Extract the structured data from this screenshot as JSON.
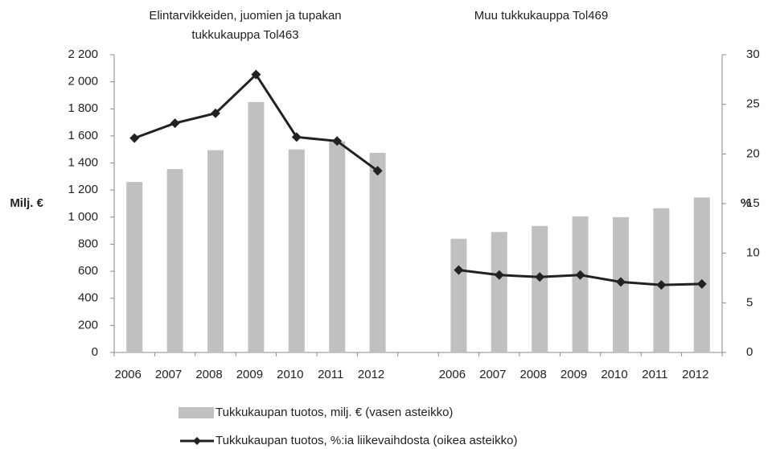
{
  "chart_data": {
    "type": "bar_line",
    "annotations": [
      {
        "lines": [
          "Elintarvikkeiden, juomien ja tupakan",
          "tukkukauppa Tol463"
        ]
      },
      {
        "lines": [
          "Muu tukkukauppa Tol469"
        ]
      }
    ],
    "ylabel": "Milj. €",
    "y2label": "%",
    "categories": [
      "2006",
      "2007",
      "2008",
      "2009",
      "2010",
      "2011",
      "2012",
      null,
      "2006",
      "2007",
      "2008",
      "2009",
      "2010",
      "2011",
      "2012"
    ],
    "series": [
      {
        "name": "Tukkukaupan tuotos, milj. € (vasen asteikko)",
        "color": "#c0c0c0",
        "kind": "bar",
        "values": [
          1260,
          1355,
          1495,
          1850,
          1500,
          1560,
          1475,
          null,
          840,
          890,
          935,
          1005,
          1000,
          1065,
          1145
        ]
      },
      {
        "name": "Tukkukaupan tuotos, %:ia liikevaihdosta (oikea asteikko)",
        "color": "#222222",
        "kind": "line",
        "axis": "y2",
        "values": [
          21.6,
          23.1,
          24.1,
          28,
          21.7,
          21.3,
          18.3,
          null,
          8.3,
          7.8,
          7.6,
          7.8,
          7.1,
          6.8,
          6.9
        ]
      }
    ],
    "ylim": [
      0,
      2200
    ],
    "yticks": [
      0,
      200,
      400,
      600,
      800,
      {
        "value": 1000,
        "label": "1 000"
      },
      {
        "value": 1200,
        "label": "1 200"
      },
      {
        "value": 1400,
        "label": "1 400"
      },
      {
        "value": 1600,
        "label": "1 600"
      },
      {
        "value": 1800,
        "label": "1 800"
      },
      {
        "value": 2000,
        "label": "2 000"
      },
      {
        "value": 2200,
        "label": "2 200"
      }
    ],
    "y2lim": [
      0,
      30
    ],
    "y2ticks": [
      0,
      5,
      10,
      15,
      20,
      25,
      30
    ],
    "legend": "bottom"
  }
}
